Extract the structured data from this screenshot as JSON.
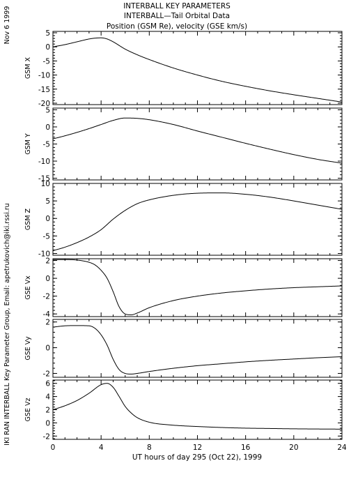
{
  "header": {
    "title_line1": "INTERBALL KEY PARAMETERS",
    "title_line2": "INTERBALL—Tail Orbital Data",
    "title_line3": "Position (GSM Re), velocity (GSE km/s)",
    "date": "Nov  6 1999",
    "credit": "IKI RAN INTERBALL Key Parameter Group, Email: apetrukovich@iki.rssi.ru"
  },
  "chart_data": {
    "type": "line",
    "xlabel": "UT hours of day 295 (Oct 22), 1999",
    "xlim": [
      0,
      24
    ],
    "xticks": [
      0,
      4,
      8,
      12,
      16,
      20,
      24
    ],
    "grid": false,
    "panels": [
      {
        "ylabel": "GSM X",
        "ylim": [
          -20.5,
          5.5
        ],
        "yticks": [
          5,
          0,
          -5,
          -10,
          -15,
          -20
        ],
        "x": [
          0,
          1,
          2,
          3,
          3.5,
          4,
          4.5,
          5,
          6,
          7,
          8,
          10,
          12,
          14,
          16,
          18,
          20,
          22,
          24
        ],
        "y": [
          0,
          0.8,
          1.8,
          2.8,
          3.1,
          3.2,
          2.8,
          1.8,
          -0.8,
          -2.8,
          -4.5,
          -7.5,
          -10,
          -12.2,
          -14,
          -15.6,
          -17,
          -18.3,
          -19.6
        ]
      },
      {
        "ylabel": "GSM Y",
        "ylim": [
          -15.5,
          5.5
        ],
        "yticks": [
          5,
          0,
          -5,
          -10,
          -15
        ],
        "x": [
          0,
          1,
          2,
          3,
          4,
          5,
          6,
          7,
          8,
          10,
          12,
          14,
          16,
          18,
          20,
          22,
          24
        ],
        "y": [
          -3.5,
          -2.6,
          -1.6,
          -0.5,
          0.7,
          1.9,
          2.6,
          2.5,
          2.1,
          0.7,
          -1.2,
          -3.0,
          -4.8,
          -6.5,
          -8.1,
          -9.5,
          -10.6
        ]
      },
      {
        "ylabel": "GSM Z",
        "ylim": [
          -10.5,
          10
        ],
        "yticks": [
          10,
          5,
          0,
          -5,
          -10
        ],
        "x": [
          0,
          1,
          2,
          3,
          4,
          5,
          6,
          7,
          8,
          10,
          12,
          14,
          16,
          18,
          20,
          22,
          24
        ],
        "y": [
          -9.2,
          -8.2,
          -6.9,
          -5.3,
          -3.2,
          -0.2,
          2.3,
          4.2,
          5.3,
          6.6,
          7.2,
          7.3,
          6.9,
          6.1,
          5.0,
          3.8,
          2.6
        ]
      },
      {
        "ylabel": "GSE Vx",
        "ylim": [
          -4.3,
          2.2
        ],
        "yticks": [
          2,
          0,
          -2,
          -4
        ],
        "x": [
          0,
          1,
          2,
          3,
          3.5,
          4,
          4.5,
          5,
          5.5,
          6,
          6.5,
          7,
          8,
          10,
          12,
          14,
          16,
          18,
          20,
          22,
          24
        ],
        "y": [
          2.1,
          2.1,
          2.05,
          1.8,
          1.5,
          0.9,
          0.0,
          -1.5,
          -3.2,
          -4.0,
          -4.1,
          -3.9,
          -3.3,
          -2.5,
          -2.0,
          -1.65,
          -1.4,
          -1.2,
          -1.05,
          -0.95,
          -0.85
        ]
      },
      {
        "ylabel": "GSE Vy",
        "ylim": [
          -2.3,
          2.2
        ],
        "yticks": [
          2,
          0,
          -2
        ],
        "x": [
          0,
          1,
          2,
          3,
          3.5,
          4,
          4.5,
          5,
          5.5,
          6,
          6.5,
          7,
          8,
          10,
          12,
          14,
          16,
          18,
          20,
          22,
          24
        ],
        "y": [
          1.6,
          1.7,
          1.72,
          1.7,
          1.5,
          1.0,
          0.2,
          -0.9,
          -1.7,
          -2.0,
          -2.05,
          -2.0,
          -1.85,
          -1.6,
          -1.4,
          -1.25,
          -1.1,
          -0.98,
          -0.88,
          -0.78,
          -0.7
        ]
      },
      {
        "ylabel": "GSE Vz",
        "ylim": [
          -2.5,
          6.5
        ],
        "yticks": [
          6,
          4,
          2,
          0,
          -2
        ],
        "x": [
          0,
          1,
          2,
          3,
          4,
          4.5,
          5,
          5.5,
          6,
          6.5,
          7,
          8,
          10,
          12,
          14,
          16,
          18,
          20,
          22,
          24
        ],
        "y": [
          2.0,
          2.6,
          3.4,
          4.5,
          5.8,
          6.0,
          5.4,
          4.0,
          2.5,
          1.5,
          0.8,
          0.1,
          -0.35,
          -0.55,
          -0.7,
          -0.8,
          -0.85,
          -0.9,
          -0.93,
          -0.95
        ]
      }
    ]
  }
}
